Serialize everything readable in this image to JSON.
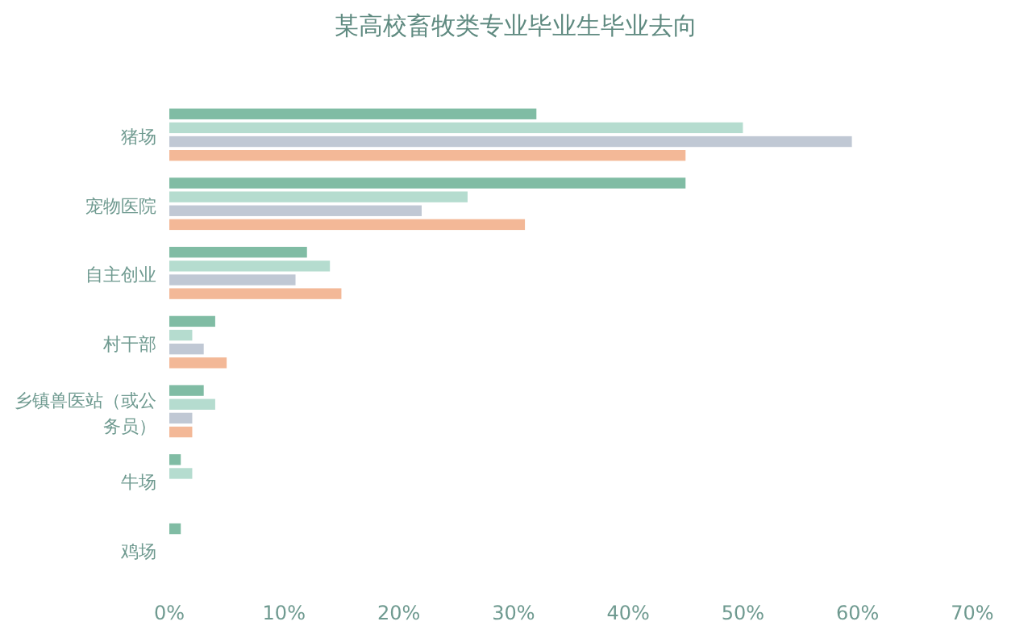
{
  "chart_data": {
    "type": "bar",
    "orientation": "horizontal",
    "title": "某高校畜牧类专业毕业生毕业去向",
    "categories": [
      "猪场",
      "宠物医院",
      "自主创业",
      "村干部",
      "乡镇兽医站（或公务员）",
      "牛场",
      "鸡场"
    ],
    "series": [
      {
        "color": "#80bca4",
        "values": [
          32,
          45,
          12,
          4,
          3,
          1,
          1
        ]
      },
      {
        "color": "#b5dccf",
        "values": [
          50,
          26,
          14,
          2,
          4,
          2,
          null
        ]
      },
      {
        "color": "#c0c8d4",
        "values": [
          59.5,
          22,
          11,
          3,
          2,
          null,
          null
        ]
      },
      {
        "color": "#f3b897",
        "values": [
          45,
          31,
          15,
          5,
          2,
          null,
          null
        ]
      }
    ],
    "xlim": [
      0,
      70
    ],
    "xticks": [
      {
        "value": 0,
        "label": "0%"
      },
      {
        "value": 10,
        "label": "10%"
      },
      {
        "value": 20,
        "label": "20%"
      },
      {
        "value": 30,
        "label": "30%"
      },
      {
        "value": 40,
        "label": "40%"
      },
      {
        "value": 50,
        "label": "50%"
      },
      {
        "value": 60,
        "label": "60%"
      },
      {
        "value": 70,
        "label": "70%"
      }
    ],
    "grid": false
  }
}
